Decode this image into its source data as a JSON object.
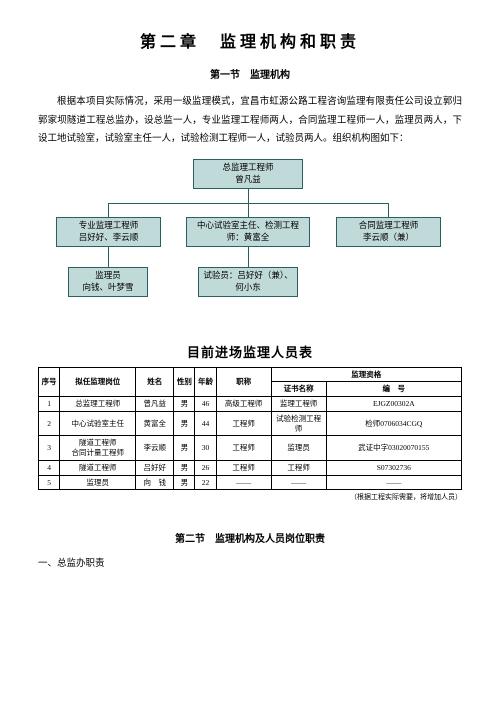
{
  "chapter_title": "第二章　监理机构和职责",
  "section1_title": "第一节　监理机构",
  "paragraph": "根据本项目实际情况，采用一级监理模式，宜昌市虹源公路工程咨询监理有限责任公司设立郭归郭家坝隧道工程总监办，设总监一人，专业监理工程师两人，合同监理工程师一人，监理员两人，下设工地试验室，试验室主任一人，试验检测工程师一人，试验员两人。组织机构图如下：",
  "org": {
    "top": {
      "role": "总监理工程师",
      "name": "曾凡益"
    },
    "mid_left": {
      "role": "专业监理工程师",
      "name": "吕好好、李云顺"
    },
    "mid_center": {
      "role": "中心试验室主任、检测工程师：黄富全"
    },
    "mid_right": {
      "role": "合同监理工程师",
      "name": "李云顺（兼）"
    },
    "bot_left": {
      "role": "监理员",
      "name": "向钱、叶梦雪"
    },
    "bot_center": {
      "role": "试验员：吕好好（兼）、何小东"
    }
  },
  "table_title": "目前进场监理人员表",
  "table": {
    "headers": {
      "seq": "序号",
      "post": "拟任监理岗位",
      "name": "姓名",
      "gender": "性别",
      "age": "年龄",
      "title": "职称",
      "qual": "监理资格",
      "cert_name": "证书名称",
      "cert_no": "编　号"
    },
    "rows": [
      {
        "seq": "1",
        "post": "总监理工程师",
        "name": "曾凡益",
        "gender": "男",
        "age": "46",
        "title": "高级工程师",
        "cert_name": "监理工程师",
        "cert_no": "EJGZ00302A"
      },
      {
        "seq": "2",
        "post": "中心试验室主任",
        "name": "黄富全",
        "gender": "男",
        "age": "44",
        "title": "工程师",
        "cert_name": "试验检测工程师",
        "cert_no": "检师0706034CGQ"
      },
      {
        "seq": "3",
        "post": "隧道工程师\n合同计量工程师",
        "name": "李云顺",
        "gender": "男",
        "age": "30",
        "title": "工程师",
        "cert_name": "监理员",
        "cert_no": "武证中字03020070155"
      },
      {
        "seq": "4",
        "post": "隧道工程师",
        "name": "吕好好",
        "gender": "男",
        "age": "26",
        "title": "工程师",
        "cert_name": "工程师",
        "cert_no": "S07302736"
      },
      {
        "seq": "5",
        "post": "监理员",
        "name": "向　钱",
        "gender": "男",
        "age": "22",
        "title": "——",
        "cert_name": "——",
        "cert_no": "——"
      }
    ],
    "note": "（根据工程实际需要，将增加人员）"
  },
  "section2_title": "第二节　监理机构及人员岗位职责",
  "sub_heading": "一、总监办职责",
  "colors": {
    "node_bg": "#c0d9d9",
    "node_border": "#2a6060"
  }
}
